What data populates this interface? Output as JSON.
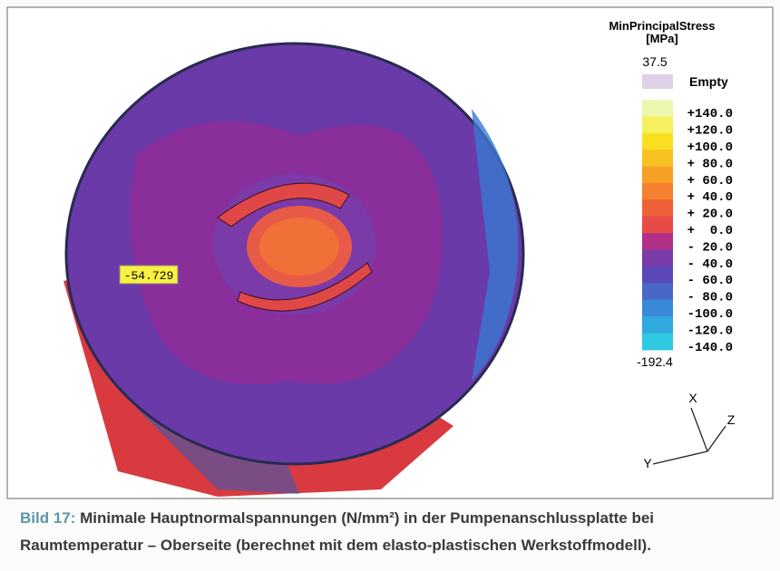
{
  "figure": {
    "legend": {
      "title": "MinPrincipalStress",
      "unit": "[MPa]",
      "max": "37.5",
      "empty": "Empty",
      "min": "-192.4",
      "entries": [
        {
          "label": "+140.0",
          "color": "#eef7b0"
        },
        {
          "label": "+120.0",
          "color": "#f4f060"
        },
        {
          "label": "+100.0",
          "color": "#f8e020"
        },
        {
          "label": "+ 80.0",
          "color": "#f8c020"
        },
        {
          "label": "+ 60.0",
          "color": "#f7a028"
        },
        {
          "label": "+ 40.0",
          "color": "#f48030"
        },
        {
          "label": "+ 20.0",
          "color": "#ee6038"
        },
        {
          "label": "+  0.0",
          "color": "#e84a48"
        },
        {
          "label": "- 20.0",
          "color": "#b0308a"
        },
        {
          "label": "- 40.0",
          "color": "#7a3aa8"
        },
        {
          "label": "- 60.0",
          "color": "#5a48b8"
        },
        {
          "label": "- 80.0",
          "color": "#4868c8"
        },
        {
          "label": "-100.0",
          "color": "#3a88d8"
        },
        {
          "label": "-120.0",
          "color": "#30a8e0"
        },
        {
          "label": "-140.0",
          "color": "#30c8e0"
        }
      ]
    },
    "probe": "-54.729",
    "axes": {
      "x": "X",
      "y": "Y",
      "z": "Z"
    }
  },
  "caption": {
    "label": "Bild 17:",
    "line1": "Minimale Hauptnormalspannungen (N/mm²) in der Pumpenanschlussplatte bei",
    "line2": "Raumtemperatur – Oberseite (berechnet mit dem elasto-plastischen Werkstoffmodell)."
  }
}
